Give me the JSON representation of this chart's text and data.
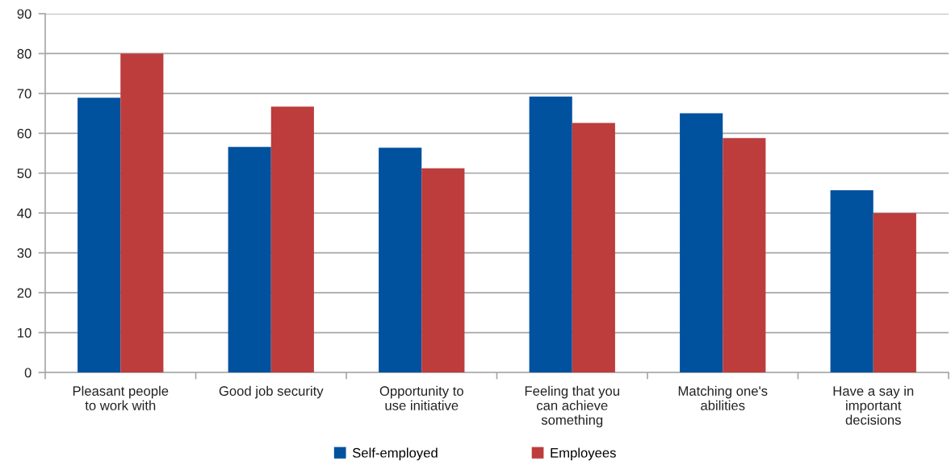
{
  "chart_data": {
    "type": "bar",
    "categories": [
      "Pleasant people\nto work with",
      "Good job security",
      "Opportunity to\nuse initiative",
      "Feeling that you\ncan achieve\nsomething",
      "Matching one's\nabilities",
      "Have a say in\nimportant\ndecisions"
    ],
    "series": [
      {
        "name": "Self-employed",
        "color": "#00519e",
        "values": [
          68.9,
          56.6,
          56.4,
          69.2,
          65.0,
          45.7
        ]
      },
      {
        "name": "Employees",
        "color": "#bd3c3c",
        "values": [
          80.0,
          66.7,
          51.2,
          62.6,
          58.8,
          40.0
        ]
      }
    ],
    "ylim": [
      0,
      90
    ],
    "yticks": [
      0,
      10,
      20,
      30,
      40,
      50,
      60,
      70,
      80,
      90
    ],
    "grid": "y",
    "legend": "bottom"
  }
}
